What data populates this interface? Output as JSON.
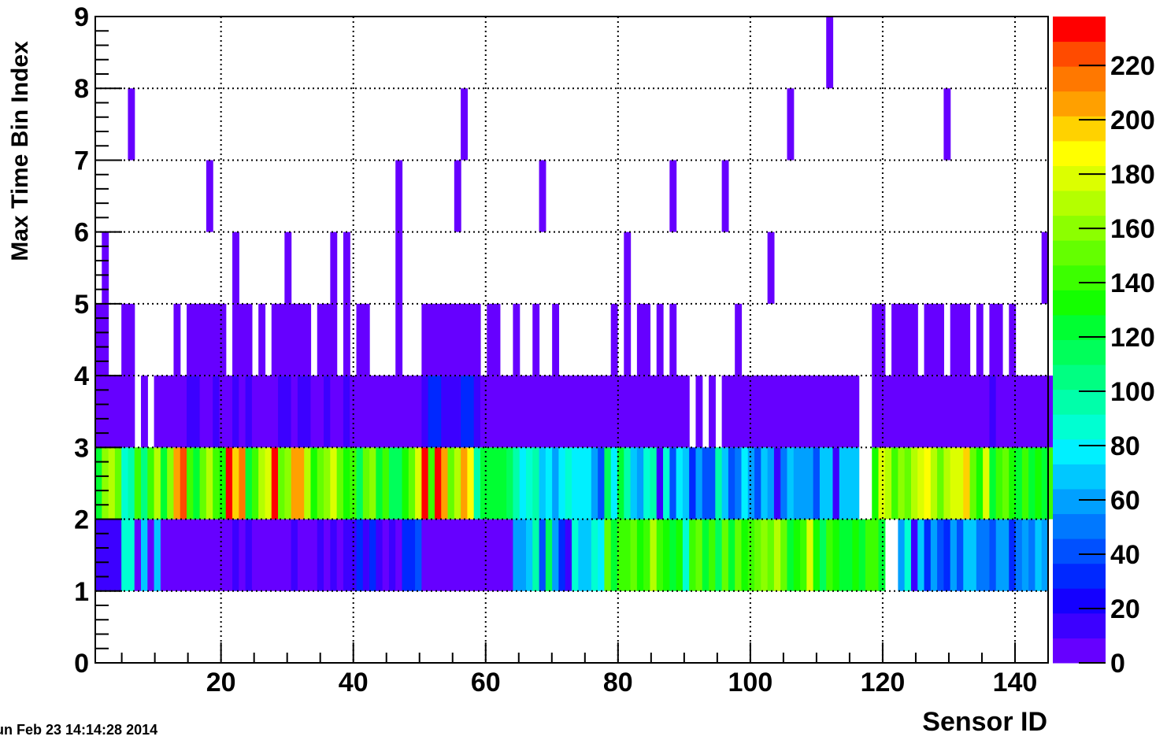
{
  "timestamp": "un Feb 23 14:14:28 2014",
  "chart_data": {
    "type": "heatmap",
    "title": "",
    "xlabel": "Sensor ID",
    "ylabel": "Max Time Bin Index",
    "xlim": [
      1,
      145
    ],
    "ylim": [
      0,
      9
    ],
    "x_ticks": [
      20,
      40,
      60,
      80,
      100,
      120,
      140
    ],
    "y_ticks": [
      0,
      1,
      2,
      3,
      4,
      5,
      6,
      7,
      8,
      9
    ],
    "z_range": [
      0,
      238
    ],
    "z_ticks": [
      0,
      20,
      40,
      60,
      80,
      100,
      120,
      140,
      160,
      180,
      200,
      220
    ],
    "grid": true,
    "palette": [
      "#6600ff",
      "#3c00ff",
      "#1400ff",
      "#0028ff",
      "#0050ff",
      "#0078ff",
      "#00a0ff",
      "#00c8ff",
      "#00f0ff",
      "#00ffd2",
      "#00ffaa",
      "#00ff82",
      "#00ff5a",
      "#00ff32",
      "#14ff00",
      "#3cff00",
      "#64ff00",
      "#8cff00",
      "#b4ff00",
      "#dcff00",
      "#ffff00",
      "#ffd200",
      "#ffa000",
      "#ff7800",
      "#ff4b00",
      "#ff0000"
    ],
    "rows": [
      {
        "y": 1,
        "values": [
          18,
          18,
          18,
          18,
          85,
          85,
          4,
          70,
          4,
          70,
          4,
          4,
          4,
          4,
          4,
          4,
          4,
          4,
          4,
          4,
          4,
          18,
          4,
          18,
          4,
          4,
          4,
          4,
          4,
          4,
          18,
          4,
          4,
          4,
          18,
          4,
          18,
          4,
          18,
          18,
          28,
          18,
          28,
          18,
          4,
          18,
          4,
          28,
          28,
          38,
          4,
          4,
          4,
          4,
          4,
          4,
          4,
          4,
          4,
          4,
          4,
          4,
          4,
          4,
          58,
          58,
          65,
          100,
          38,
          115,
          58,
          28,
          18,
          90,
          70,
          70,
          85,
          80,
          150,
          120,
          145,
          140,
          150,
          135,
          140,
          165,
          140,
          130,
          120,
          130,
          85,
          140,
          150,
          125,
          140,
          115,
          150,
          120,
          150,
          130,
          145,
          155,
          160,
          150,
          165,
          150,
          120,
          130,
          140,
          175,
          130,
          110,
          140,
          130,
          120,
          125,
          135,
          125,
          140,
          140,
          125,
          0,
          0,
          58,
          85,
          18,
          65,
          28,
          58,
          38,
          28,
          58,
          38,
          70,
          65,
          48,
          48,
          38,
          58,
          58,
          28,
          48,
          58,
          48,
          65,
          58
        ]
      },
      {
        "y": 2,
        "values": [
          128,
          160,
          165,
          150,
          85,
          100,
          145,
          108,
          140,
          165,
          128,
          158,
          210,
          225,
          140,
          120,
          150,
          170,
          145,
          130,
          230,
          200,
          215,
          125,
          140,
          165,
          175,
          240,
          150,
          160,
          205,
          205,
          170,
          130,
          150,
          160,
          175,
          150,
          130,
          145,
          110,
          155,
          160,
          125,
          145,
          115,
          110,
          130,
          150,
          175,
          230,
          145,
          230,
          205,
          150,
          165,
          210,
          185,
          100,
          125,
          128,
          128,
          128,
          110,
          100,
          80,
          85,
          100,
          65,
          75,
          60,
          80,
          85,
          80,
          75,
          75,
          55,
          38,
          110,
          75,
          120,
          100,
          65,
          55,
          90,
          100,
          18,
          85,
          38,
          75,
          65,
          28,
          58,
          38,
          38,
          100,
          65,
          38,
          50,
          80,
          55,
          38,
          65,
          58,
          18,
          50,
          65,
          55,
          55,
          55,
          38,
          65,
          65,
          18,
          65,
          65,
          65,
          0,
          0,
          130,
          180,
          170,
          145,
          160,
          150,
          165,
          180,
          185,
          170,
          150,
          170,
          175,
          180,
          200,
          150,
          135,
          180,
          120,
          140,
          150,
          135,
          120,
          140,
          125,
          130,
          120,
          145
        ]
      },
      {
        "y": 3,
        "values": [
          4,
          4,
          4,
          4,
          4,
          4,
          0,
          4,
          0,
          4,
          4,
          4,
          4,
          4,
          18,
          18,
          4,
          4,
          18,
          4,
          4,
          18,
          4,
          18,
          4,
          4,
          4,
          4,
          18,
          18,
          4,
          18,
          18,
          4,
          4,
          18,
          4,
          4,
          18,
          4,
          4,
          4,
          4,
          4,
          4,
          4,
          4,
          4,
          4,
          4,
          18,
          28,
          28,
          18,
          18,
          18,
          28,
          28,
          18,
          4,
          4,
          4,
          4,
          4,
          4,
          4,
          4,
          4,
          4,
          4,
          4,
          4,
          4,
          4,
          4,
          4,
          4,
          4,
          4,
          4,
          4,
          4,
          4,
          4,
          4,
          4,
          4,
          4,
          4,
          4,
          4,
          0,
          4,
          0,
          4,
          0,
          4,
          4,
          4,
          4,
          4,
          4,
          4,
          4,
          4,
          4,
          4,
          4,
          4,
          4,
          4,
          4,
          4,
          4,
          4,
          4,
          4,
          0,
          0,
          4,
          4,
          4,
          4,
          4,
          4,
          4,
          4,
          4,
          4,
          4,
          4,
          4,
          4,
          4,
          4,
          4,
          4,
          18,
          4,
          4,
          4,
          4,
          4,
          4,
          4,
          4,
          4
        ]
      },
      {
        "y": 4,
        "values": [
          1,
          1,
          0,
          0,
          1,
          1,
          0,
          0,
          0,
          0,
          0,
          0,
          1,
          0,
          1,
          1,
          1,
          1,
          1,
          1,
          0,
          1,
          1,
          1,
          0,
          1,
          0,
          1,
          1,
          1,
          1,
          1,
          1,
          0,
          1,
          1,
          1,
          0,
          1,
          0,
          1,
          1,
          0,
          0,
          0,
          0,
          1,
          0,
          0,
          0,
          1,
          1,
          1,
          1,
          1,
          1,
          1,
          1,
          1,
          0,
          1,
          1,
          0,
          0,
          1,
          0,
          0,
          1,
          0,
          0,
          1,
          0,
          0,
          0,
          0,
          0,
          0,
          0,
          0,
          1,
          0,
          1,
          0,
          1,
          1,
          0,
          1,
          0,
          1,
          0,
          0,
          0,
          0,
          0,
          0,
          0,
          0,
          0,
          1,
          0,
          0,
          0,
          0,
          0,
          0,
          0,
          0,
          0,
          0,
          0,
          0,
          0,
          0,
          0,
          0,
          0,
          0,
          0,
          0,
          1,
          1,
          0,
          1,
          1,
          1,
          1,
          0,
          1,
          1,
          1,
          0,
          1,
          1,
          1,
          0,
          1,
          0,
          1,
          1,
          0,
          1,
          0,
          0,
          0,
          0,
          0,
          0
        ]
      },
      {
        "y": 5,
        "values": [
          0,
          1,
          0,
          0,
          0,
          0,
          0,
          0,
          0,
          0,
          0,
          0,
          0,
          0,
          0,
          0,
          0,
          0,
          0,
          0,
          0,
          1,
          0,
          0,
          0,
          0,
          0,
          0,
          0,
          1,
          0,
          0,
          0,
          0,
          0,
          0,
          1,
          0,
          1,
          0,
          0,
          0,
          0,
          0,
          0,
          0,
          1,
          0,
          0,
          0,
          0,
          0,
          0,
          0,
          0,
          0,
          0,
          0,
          0,
          0,
          0,
          0,
          0,
          0,
          0,
          0,
          0,
          0,
          0,
          0,
          0,
          0,
          0,
          0,
          0,
          0,
          0,
          0,
          0,
          0,
          0,
          1,
          0,
          0,
          0,
          0,
          0,
          0,
          0,
          0,
          0,
          0,
          0,
          0,
          0,
          0,
          0,
          0,
          0,
          0,
          0,
          0,
          0,
          1,
          0,
          0,
          0,
          0,
          0,
          0,
          0,
          0,
          0,
          0,
          0,
          0,
          0,
          0,
          0,
          0,
          0,
          0,
          0,
          0,
          0,
          0,
          0,
          0,
          0,
          0,
          0,
          0,
          0,
          0,
          0,
          0,
          0,
          0,
          0,
          0,
          0,
          0,
          0,
          0,
          0,
          1,
          0
        ]
      },
      {
        "y": 6,
        "values": [
          0,
          0,
          0,
          0,
          0,
          0,
          0,
          0,
          0,
          0,
          0,
          0,
          0,
          0,
          0,
          0,
          0,
          1,
          0,
          0,
          0,
          0,
          0,
          0,
          0,
          0,
          0,
          0,
          0,
          0,
          0,
          0,
          0,
          0,
          0,
          0,
          0,
          0,
          0,
          0,
          0,
          0,
          0,
          0,
          0,
          0,
          1,
          0,
          0,
          0,
          0,
          0,
          0,
          0,
          0,
          1,
          0,
          0,
          0,
          0,
          0,
          0,
          0,
          0,
          0,
          0,
          0,
          0,
          1,
          0,
          0,
          0,
          0,
          0,
          0,
          0,
          0,
          0,
          0,
          0,
          0,
          0,
          0,
          0,
          0,
          0,
          0,
          0,
          1,
          0,
          0,
          0,
          0,
          0,
          0,
          0,
          1,
          0,
          0,
          0,
          0,
          0,
          0,
          0,
          0,
          0,
          0,
          0,
          0,
          0,
          0,
          0,
          0,
          0,
          0,
          0,
          0,
          0,
          0,
          0,
          0,
          0,
          0,
          0,
          0,
          0,
          0,
          0,
          0,
          0,
          0,
          0,
          0,
          0,
          0,
          0,
          0,
          0,
          0,
          0,
          0,
          0,
          0,
          0,
          0,
          0,
          0
        ]
      },
      {
        "y": 7,
        "values": [
          0,
          0,
          0,
          0,
          0,
          1,
          0,
          0,
          0,
          0,
          0,
          0,
          0,
          0,
          0,
          0,
          0,
          0,
          0,
          0,
          0,
          0,
          0,
          0,
          0,
          0,
          0,
          0,
          0,
          0,
          0,
          0,
          0,
          0,
          0,
          0,
          0,
          0,
          0,
          0,
          0,
          0,
          0,
          0,
          0,
          0,
          0,
          0,
          0,
          0,
          0,
          0,
          0,
          0,
          0,
          0,
          1,
          0,
          0,
          0,
          0,
          0,
          0,
          0,
          0,
          0,
          0,
          0,
          0,
          0,
          0,
          0,
          0,
          0,
          0,
          0,
          0,
          0,
          0,
          0,
          0,
          0,
          0,
          0,
          0,
          0,
          0,
          0,
          0,
          0,
          0,
          0,
          0,
          0,
          0,
          0,
          0,
          0,
          0,
          0,
          0,
          0,
          0,
          0,
          0,
          0,
          1,
          0,
          0,
          0,
          0,
          0,
          0,
          0,
          0,
          0,
          0,
          0,
          0,
          0,
          0,
          0,
          0,
          0,
          0,
          0,
          0,
          0,
          0,
          0,
          1,
          0,
          0,
          0,
          0,
          0,
          0,
          0,
          0,
          0,
          0,
          0,
          0,
          0,
          0,
          0,
          0
        ]
      },
      {
        "y": 8,
        "values": [
          0,
          0,
          0,
          0,
          0,
          0,
          0,
          0,
          0,
          0,
          0,
          0,
          0,
          0,
          0,
          0,
          0,
          0,
          0,
          0,
          0,
          0,
          0,
          0,
          0,
          0,
          0,
          0,
          0,
          0,
          0,
          0,
          0,
          0,
          0,
          0,
          0,
          0,
          0,
          0,
          0,
          0,
          0,
          0,
          0,
          0,
          0,
          0,
          0,
          0,
          0,
          0,
          0,
          0,
          0,
          0,
          0,
          0,
          0,
          0,
          0,
          0,
          0,
          0,
          0,
          0,
          0,
          0,
          0,
          0,
          0,
          0,
          0,
          0,
          0,
          0,
          0,
          0,
          0,
          0,
          0,
          0,
          0,
          0,
          0,
          0,
          0,
          0,
          0,
          0,
          0,
          0,
          0,
          0,
          0,
          0,
          0,
          0,
          0,
          0,
          0,
          0,
          0,
          0,
          0,
          0,
          0,
          0,
          0,
          0,
          0,
          0,
          1,
          0,
          0,
          0,
          0,
          0,
          0,
          0,
          0,
          0,
          0,
          0,
          0,
          0,
          0,
          0,
          0,
          0,
          0,
          0,
          0,
          0,
          0,
          0,
          0,
          0,
          0,
          0,
          0,
          0,
          0,
          0,
          0,
          0,
          0
        ]
      }
    ],
    "presence": [
      {
        "y": 4,
        "present": [
          0,
          1,
          0,
          0,
          0,
          0,
          0,
          0,
          0,
          0,
          0,
          0,
          0,
          0,
          0,
          0,
          0,
          0,
          0,
          0,
          0,
          0,
          0,
          0,
          0,
          0,
          0,
          0,
          0,
          0,
          0,
          0,
          0,
          0,
          0,
          0,
          0,
          0,
          0,
          0,
          0,
          0,
          0,
          0,
          0,
          0,
          0,
          0,
          0,
          0,
          0,
          0,
          0,
          0,
          0,
          0,
          0,
          0,
          0,
          0,
          0,
          0,
          0,
          0,
          0,
          0,
          0,
          0,
          0,
          0,
          0,
          0,
          0,
          0,
          0,
          0,
          0,
          0,
          0,
          0,
          0,
          0,
          0,
          0,
          0,
          0,
          0,
          0,
          0,
          0,
          0,
          0,
          0,
          0,
          0,
          0,
          0,
          0,
          0,
          0,
          0,
          0,
          0,
          0,
          0,
          0,
          0,
          0,
          0,
          0,
          0,
          0,
          0,
          0,
          0,
          0,
          0,
          0,
          0,
          0,
          0,
          0,
          0,
          0,
          0,
          0,
          0,
          0,
          0,
          0,
          0,
          0,
          0,
          0,
          0,
          0,
          0,
          0,
          0,
          0,
          0,
          0,
          0,
          0,
          0,
          0,
          0
        ]
      }
    ]
  }
}
